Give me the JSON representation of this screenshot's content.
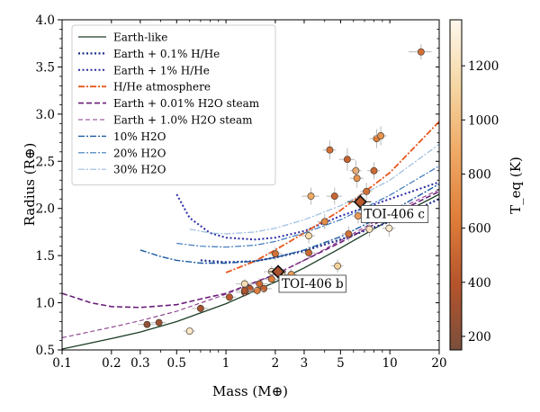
{
  "chart_data": {
    "type": "scatter",
    "xlabel": "Mass (M⊕)",
    "ylabel": "Radius (R⊕)",
    "xscale": "log",
    "xlim": [
      0.1,
      20
    ],
    "ylim": [
      0.5,
      4.0
    ],
    "grid": false,
    "legend_position": "top-left",
    "x_ticks": [
      {
        "v": 0.1,
        "label": "0.1"
      },
      {
        "v": 0.2,
        "label": "0.2"
      },
      {
        "v": 0.3,
        "label": "0.3"
      },
      {
        "v": 0.5,
        "label": "0.5"
      },
      {
        "v": 1,
        "label": "1"
      },
      {
        "v": 2,
        "label": "2"
      },
      {
        "v": 3,
        "label": "3"
      },
      {
        "v": 5,
        "label": "5"
      },
      {
        "v": 10,
        "label": "10"
      },
      {
        "v": 20,
        "label": "20"
      }
    ],
    "y_ticks": [
      {
        "v": 0.5,
        "label": "0.5"
      },
      {
        "v": 1.0,
        "label": "1.0"
      },
      {
        "v": 1.5,
        "label": "1.5"
      },
      {
        "v": 2.0,
        "label": "2.0"
      },
      {
        "v": 2.5,
        "label": "2.5"
      },
      {
        "v": 3.0,
        "label": "3.0"
      },
      {
        "v": 3.5,
        "label": "3.5"
      },
      {
        "v": 4.0,
        "label": "4.0"
      }
    ],
    "colorbar": {
      "label": "T_eq (K)",
      "min": 150,
      "max": 1370,
      "ticks": [
        200,
        400,
        600,
        800,
        1000,
        1200
      ],
      "colors": [
        "#7a4f3c",
        "#b5542c",
        "#df7e3a",
        "#efaa66",
        "#f6d7a4",
        "#fdf8ec"
      ]
    },
    "curves": [
      {
        "name": "Earth-like",
        "color": "#1c3d24",
        "dash": "",
        "width": 1.3,
        "points": [
          [
            0.1,
            0.51
          ],
          [
            0.2,
            0.62
          ],
          [
            0.3,
            0.69
          ],
          [
            0.5,
            0.8
          ],
          [
            1,
            0.99
          ],
          [
            2,
            1.22
          ],
          [
            3,
            1.37
          ],
          [
            5,
            1.58
          ],
          [
            10,
            1.88
          ],
          [
            20,
            2.15
          ]
        ]
      },
      {
        "name": "Earth + 0.1% H/He",
        "color": "#1e2c8a",
        "dash": "2 2.5",
        "width": 2.2,
        "points": [
          [
            0.7,
            1.45
          ],
          [
            1,
            1.43
          ],
          [
            1.5,
            1.44
          ],
          [
            2,
            1.48
          ],
          [
            3,
            1.55
          ],
          [
            5,
            1.67
          ],
          [
            10,
            1.86
          ],
          [
            20,
            2.1
          ]
        ]
      },
      {
        "name": "Earth + 1% H/He",
        "color": "#2a2aa8",
        "dash": "2 2.5",
        "width": 2.0,
        "points": [
          [
            0.5,
            2.15
          ],
          [
            0.6,
            1.9
          ],
          [
            0.8,
            1.74
          ],
          [
            1,
            1.69
          ],
          [
            1.5,
            1.67
          ],
          [
            2,
            1.69
          ],
          [
            3,
            1.76
          ],
          [
            5,
            1.92
          ],
          [
            10,
            2.1
          ],
          [
            20,
            2.28
          ]
        ]
      },
      {
        "name": "H/He atmosphere",
        "color": "#e8571b",
        "dash": "7 2 2 2",
        "width": 1.8,
        "points": [
          [
            1,
            1.32
          ],
          [
            1.5,
            1.44
          ],
          [
            2,
            1.56
          ],
          [
            3,
            1.74
          ],
          [
            5,
            1.98
          ],
          [
            10,
            2.38
          ],
          [
            20,
            2.92
          ]
        ]
      },
      {
        "name": "Earth + 0.01% H2O steam",
        "color": "#6a1e7a",
        "dash": "6 3",
        "width": 1.6,
        "points": [
          [
            0.1,
            1.1
          ],
          [
            0.15,
            1.0
          ],
          [
            0.2,
            0.96
          ],
          [
            0.3,
            0.95
          ],
          [
            0.5,
            0.98
          ],
          [
            0.7,
            1.04
          ],
          [
            1,
            1.1
          ],
          [
            2,
            1.3
          ],
          [
            5,
            1.64
          ],
          [
            10,
            1.92
          ],
          [
            20,
            2.18
          ]
        ]
      },
      {
        "name": "Earth + 1.0% H2O steam",
        "color": "#8a3a8a",
        "dash": "5 3",
        "width": 1.1,
        "points": [
          [
            0.1,
            0.63
          ],
          [
            0.2,
            0.74
          ],
          [
            0.3,
            0.81
          ],
          [
            0.5,
            0.91
          ],
          [
            1,
            1.09
          ],
          [
            2,
            1.3
          ],
          [
            3,
            1.45
          ],
          [
            5,
            1.66
          ],
          [
            10,
            1.95
          ],
          [
            20,
            2.2
          ]
        ]
      },
      {
        "name": "10% H2O",
        "color": "#1a5aa0",
        "dash": "7 2 2 2",
        "width": 1.4,
        "points": [
          [
            0.3,
            1.56
          ],
          [
            0.4,
            1.49
          ],
          [
            0.5,
            1.45
          ],
          [
            0.7,
            1.42
          ],
          [
            1,
            1.42
          ],
          [
            1.5,
            1.44
          ],
          [
            2,
            1.48
          ],
          [
            3,
            1.56
          ],
          [
            5,
            1.7
          ],
          [
            10,
            1.96
          ],
          [
            20,
            2.26
          ]
        ]
      },
      {
        "name": "20% H2O",
        "color": "#3a78bc",
        "dash": "7 2 2 2",
        "width": 1.2,
        "points": [
          [
            0.5,
            1.63
          ],
          [
            0.7,
            1.6
          ],
          [
            1,
            1.59
          ],
          [
            1.5,
            1.61
          ],
          [
            2,
            1.65
          ],
          [
            3,
            1.74
          ],
          [
            5,
            1.88
          ],
          [
            10,
            2.14
          ],
          [
            20,
            2.45
          ]
        ]
      },
      {
        "name": "30% H2O",
        "color": "#9cbce0",
        "dash": "7 2 2 2",
        "width": 1.2,
        "points": [
          [
            0.6,
            1.78
          ],
          [
            0.8,
            1.74
          ],
          [
            1,
            1.73
          ],
          [
            1.5,
            1.75
          ],
          [
            2,
            1.79
          ],
          [
            3,
            1.88
          ],
          [
            5,
            2.03
          ],
          [
            10,
            2.3
          ],
          [
            20,
            2.68
          ]
        ]
      }
    ],
    "planets": [
      {
        "m": 15.5,
        "r": 3.66,
        "dm": 2.5,
        "dr": 0.08,
        "t": 560
      },
      {
        "m": 4.3,
        "r": 2.62,
        "dm": 0.4,
        "dr": 0.1,
        "t": 560
      },
      {
        "m": 5.5,
        "r": 2.52,
        "dm": 0.6,
        "dr": 0.12,
        "t": 480
      },
      {
        "m": 6.2,
        "r": 2.4,
        "dm": 0.5,
        "dr": 0.11,
        "t": 880
      },
      {
        "m": 8.3,
        "r": 2.74,
        "dm": 0.8,
        "dr": 0.1,
        "t": 640
      },
      {
        "m": 8.8,
        "r": 2.77,
        "dm": 0.8,
        "dr": 0.1,
        "t": 760
      },
      {
        "m": 8.0,
        "r": 2.4,
        "dm": 0.7,
        "dr": 0.09,
        "t": 520
      },
      {
        "m": 6.3,
        "r": 2.32,
        "dm": 0.6,
        "dr": 0.1,
        "t": 760
      },
      {
        "m": 7.2,
        "r": 2.18,
        "dm": 0.6,
        "dr": 0.09,
        "t": 560
      },
      {
        "m": 3.3,
        "r": 2.13,
        "dm": 0.4,
        "dr": 0.09,
        "t": 880
      },
      {
        "m": 4.6,
        "r": 2.13,
        "dm": 0.5,
        "dr": 0.09,
        "t": 500
      },
      {
        "m": 4.0,
        "r": 1.86,
        "dm": 0.4,
        "dr": 0.08,
        "t": 720
      },
      {
        "m": 6.4,
        "r": 1.92,
        "dm": 0.5,
        "dr": 0.08,
        "t": 800
      },
      {
        "m": 5.6,
        "r": 1.73,
        "dm": 0.5,
        "dr": 0.08,
        "t": 560
      },
      {
        "m": 3.2,
        "r": 1.71,
        "dm": 0.3,
        "dr": 0.08,
        "t": 1160
      },
      {
        "m": 7.5,
        "r": 1.78,
        "dm": 0.6,
        "dr": 0.08,
        "t": 1220
      },
      {
        "m": 9.9,
        "r": 1.79,
        "dm": 0.9,
        "dr": 0.09,
        "t": 1280
      },
      {
        "m": 2.0,
        "r": 1.52,
        "dm": 0.2,
        "dr": 0.07,
        "t": 560
      },
      {
        "m": 3.2,
        "r": 1.53,
        "dm": 0.3,
        "dr": 0.07,
        "t": 520
      },
      {
        "m": 4.8,
        "r": 1.39,
        "dm": 0.4,
        "dr": 0.07,
        "t": 1100
      },
      {
        "m": 1.9,
        "r": 1.33,
        "dm": 0.2,
        "dr": 0.06,
        "t": 1260
      },
      {
        "m": 2.2,
        "r": 1.3,
        "dm": 0.2,
        "dr": 0.06,
        "t": 1100
      },
      {
        "m": 2.5,
        "r": 1.3,
        "dm": 0.2,
        "dr": 0.06,
        "t": 820
      },
      {
        "m": 2.4,
        "r": 1.23,
        "dm": 0.2,
        "dr": 0.06,
        "t": 720
      },
      {
        "m": 1.9,
        "r": 1.25,
        "dm": 0.2,
        "dr": 0.06,
        "t": 640
      },
      {
        "m": 1.6,
        "r": 1.2,
        "dm": 0.2,
        "dr": 0.06,
        "t": 540
      },
      {
        "m": 1.7,
        "r": 1.15,
        "dm": 0.2,
        "dr": 0.05,
        "t": 480
      },
      {
        "m": 1.3,
        "r": 1.2,
        "dm": 0.15,
        "dr": 0.05,
        "t": 1180
      },
      {
        "m": 1.55,
        "r": 1.13,
        "dm": 0.15,
        "dr": 0.05,
        "t": 640
      },
      {
        "m": 1.4,
        "r": 1.15,
        "dm": 0.15,
        "dr": 0.05,
        "t": 420
      },
      {
        "m": 1.3,
        "r": 1.11,
        "dm": 0.15,
        "dr": 0.05,
        "t": 300
      },
      {
        "m": 1.3,
        "r": 1.13,
        "dm": 0.15,
        "dr": 0.05,
        "t": 360
      },
      {
        "m": 1.05,
        "r": 1.06,
        "dm": 0.1,
        "dr": 0.05,
        "t": 420
      },
      {
        "m": 0.7,
        "r": 0.94,
        "dm": 0.08,
        "dr": 0.04,
        "t": 330
      },
      {
        "m": 0.39,
        "r": 0.79,
        "dm": 0.04,
        "dr": 0.03,
        "t": 280
      },
      {
        "m": 0.33,
        "r": 0.77,
        "dm": 0.04,
        "dr": 0.03,
        "t": 240
      },
      {
        "m": 0.6,
        "r": 0.7,
        "dm": 0.05,
        "dr": 0.03,
        "t": 1250
      }
    ],
    "highlighted": [
      {
        "label": "TOI-406 c",
        "m": 6.6,
        "r": 2.07,
        "dm": 1.1,
        "dr": 0.08,
        "t": 420,
        "label_pos": "right-below"
      },
      {
        "label": "TOI-406 b",
        "m": 2.08,
        "r": 1.33,
        "dm": 0.25,
        "dr": 0.07,
        "t": 360,
        "label_pos": "right-below"
      }
    ]
  }
}
